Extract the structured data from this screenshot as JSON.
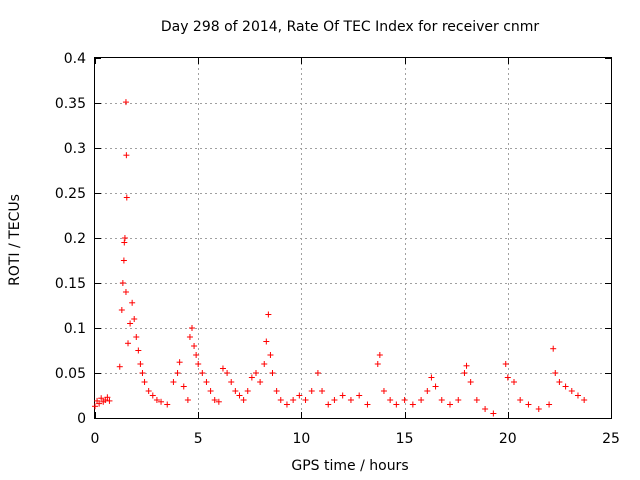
{
  "chart_data": {
    "type": "scatter",
    "title": "Day 298 of 2014, Rate Of TEC Index for receiver cnmr",
    "xlabel": "GPS time / hours",
    "ylabel": "ROTI / TECUs",
    "xlim": [
      0,
      25
    ],
    "ylim": [
      0,
      0.4
    ],
    "xticks": [
      0,
      5,
      10,
      15,
      20,
      25
    ],
    "xtick_labels": [
      "0",
      "5",
      "10",
      "15",
      "20",
      "25"
    ],
    "yticks": [
      0,
      0.05,
      0.1,
      0.15,
      0.2,
      0.25,
      0.3,
      0.35,
      0.4
    ],
    "ytick_labels": [
      "0",
      "0.05",
      "0.1",
      "0.15",
      "0.2",
      "0.25",
      "0.3",
      "0.35",
      "0.4"
    ],
    "grid": true,
    "marker": "+",
    "series": [
      {
        "name": "ROTI",
        "color": "#ff0000",
        "points": [
          [
            0.0,
            0.013
          ],
          [
            0.1,
            0.019
          ],
          [
            0.2,
            0.016
          ],
          [
            0.3,
            0.022
          ],
          [
            0.4,
            0.018
          ],
          [
            0.5,
            0.02
          ],
          [
            0.6,
            0.023
          ],
          [
            0.7,
            0.019
          ],
          [
            1.2,
            0.057
          ],
          [
            1.3,
            0.12
          ],
          [
            1.35,
            0.15
          ],
          [
            1.4,
            0.175
          ],
          [
            1.42,
            0.195
          ],
          [
            1.45,
            0.2
          ],
          [
            1.5,
            0.14
          ],
          [
            1.5,
            0.351
          ],
          [
            1.52,
            0.292
          ],
          [
            1.54,
            0.245
          ],
          [
            1.6,
            0.083
          ],
          [
            1.7,
            0.105
          ],
          [
            1.8,
            0.128
          ],
          [
            1.9,
            0.11
          ],
          [
            2.0,
            0.09
          ],
          [
            2.1,
            0.075
          ],
          [
            2.2,
            0.06
          ],
          [
            2.3,
            0.05
          ],
          [
            2.4,
            0.04
          ],
          [
            2.6,
            0.03
          ],
          [
            2.8,
            0.025
          ],
          [
            3.0,
            0.02
          ],
          [
            3.2,
            0.018
          ],
          [
            3.5,
            0.015
          ],
          [
            3.8,
            0.04
          ],
          [
            4.0,
            0.05
          ],
          [
            4.1,
            0.062
          ],
          [
            4.3,
            0.035
          ],
          [
            4.5,
            0.02
          ],
          [
            4.6,
            0.09
          ],
          [
            4.7,
            0.1
          ],
          [
            4.8,
            0.08
          ],
          [
            4.9,
            0.07
          ],
          [
            5.0,
            0.06
          ],
          [
            5.2,
            0.05
          ],
          [
            5.4,
            0.04
          ],
          [
            5.6,
            0.03
          ],
          [
            5.8,
            0.02
          ],
          [
            6.0,
            0.018
          ],
          [
            6.2,
            0.055
          ],
          [
            6.4,
            0.05
          ],
          [
            6.6,
            0.04
          ],
          [
            6.8,
            0.03
          ],
          [
            7.0,
            0.025
          ],
          [
            7.2,
            0.02
          ],
          [
            7.4,
            0.03
          ],
          [
            7.6,
            0.045
          ],
          [
            7.8,
            0.05
          ],
          [
            8.0,
            0.04
          ],
          [
            8.2,
            0.06
          ],
          [
            8.3,
            0.085
          ],
          [
            8.4,
            0.115
          ],
          [
            8.5,
            0.07
          ],
          [
            8.6,
            0.05
          ],
          [
            8.8,
            0.03
          ],
          [
            9.0,
            0.02
          ],
          [
            9.3,
            0.015
          ],
          [
            9.6,
            0.02
          ],
          [
            9.9,
            0.025
          ],
          [
            10.2,
            0.02
          ],
          [
            10.5,
            0.03
          ],
          [
            10.8,
            0.05
          ],
          [
            11.0,
            0.03
          ],
          [
            11.3,
            0.015
          ],
          [
            11.6,
            0.02
          ],
          [
            12.0,
            0.025
          ],
          [
            12.4,
            0.02
          ],
          [
            12.8,
            0.025
          ],
          [
            13.2,
            0.015
          ],
          [
            13.7,
            0.06
          ],
          [
            13.8,
            0.07
          ],
          [
            14.0,
            0.03
          ],
          [
            14.3,
            0.02
          ],
          [
            14.6,
            0.015
          ],
          [
            15.0,
            0.02
          ],
          [
            15.4,
            0.015
          ],
          [
            15.8,
            0.02
          ],
          [
            16.1,
            0.03
          ],
          [
            16.3,
            0.045
          ],
          [
            16.5,
            0.035
          ],
          [
            16.8,
            0.02
          ],
          [
            17.2,
            0.015
          ],
          [
            17.6,
            0.02
          ],
          [
            17.9,
            0.05
          ],
          [
            18.0,
            0.058
          ],
          [
            18.2,
            0.04
          ],
          [
            18.5,
            0.02
          ],
          [
            18.9,
            0.01
          ],
          [
            19.3,
            0.005
          ],
          [
            19.9,
            0.06
          ],
          [
            20.0,
            0.045
          ],
          [
            20.3,
            0.04
          ],
          [
            20.6,
            0.02
          ],
          [
            21.0,
            0.015
          ],
          [
            21.5,
            0.01
          ],
          [
            22.0,
            0.015
          ],
          [
            22.2,
            0.077
          ],
          [
            22.3,
            0.05
          ],
          [
            22.5,
            0.04
          ],
          [
            22.8,
            0.035
          ],
          [
            23.1,
            0.03
          ],
          [
            23.4,
            0.025
          ],
          [
            23.7,
            0.02
          ]
        ]
      }
    ]
  }
}
